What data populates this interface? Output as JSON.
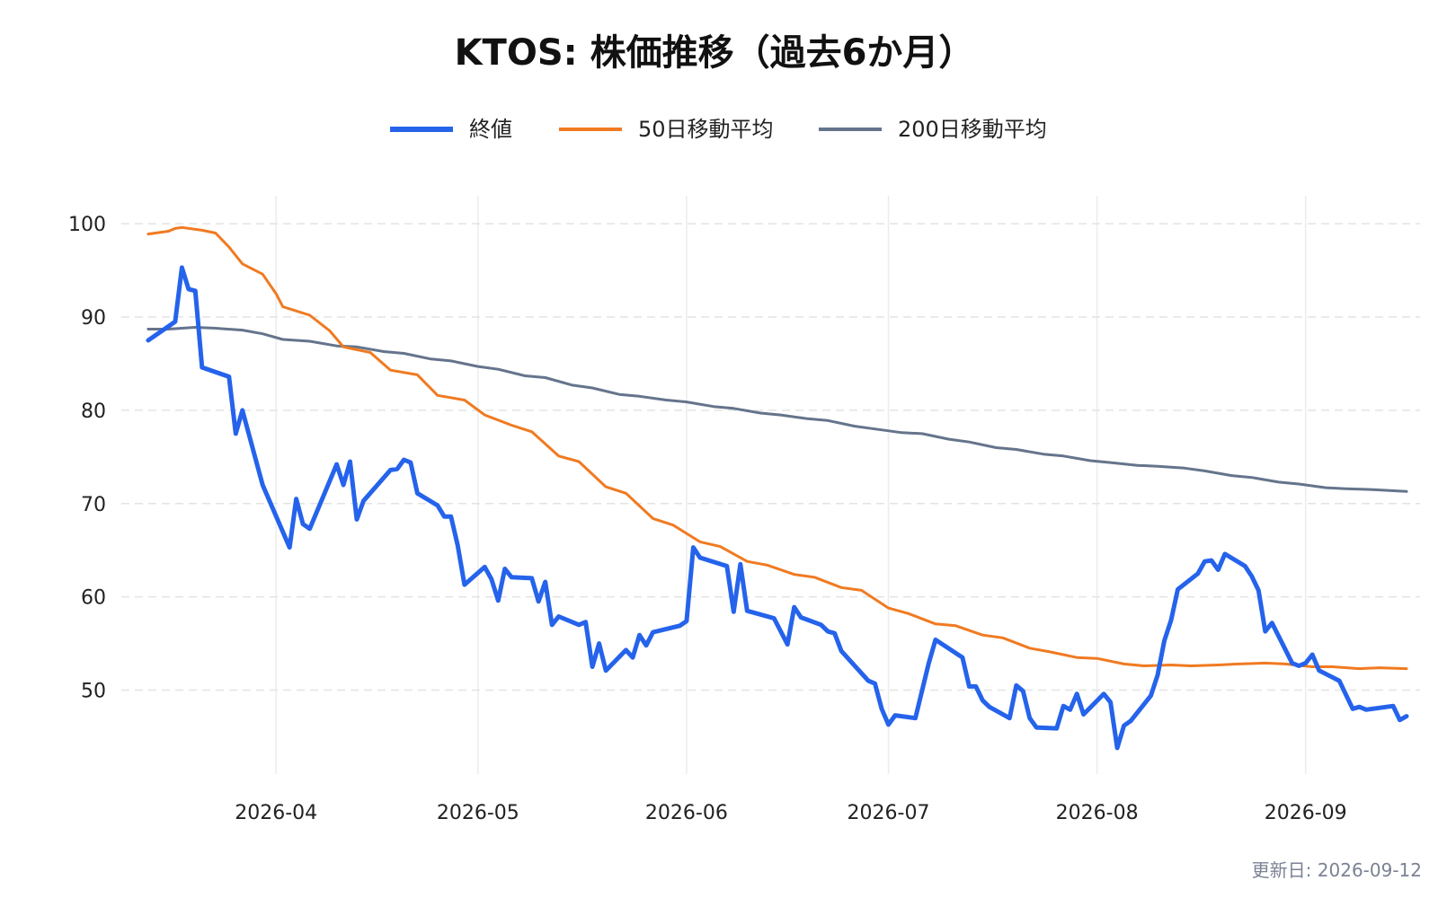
{
  "chart_data": {
    "type": "line",
    "title": "KTOS: 株価推移（過去6か月）",
    "xlabel": "",
    "ylabel": "",
    "ylim": [
      41,
      103
    ],
    "xlim": [
      "2026-03-07",
      "2026-09-18"
    ],
    "y_ticks": [
      50,
      60,
      70,
      80,
      90,
      100
    ],
    "x_ticks": [
      {
        "date": "2026-04-01",
        "label": "2026-04"
      },
      {
        "date": "2026-05-01",
        "label": "2026-05"
      },
      {
        "date": "2026-06-01",
        "label": "2026-06"
      },
      {
        "date": "2026-07-01",
        "label": "2026-07"
      },
      {
        "date": "2026-08-01",
        "label": "2026-08"
      },
      {
        "date": "2026-09-01",
        "label": "2026-09"
      }
    ],
    "grid": true,
    "legend_position": "top-center",
    "series": [
      {
        "name": "終値",
        "color": "#2563eb",
        "points": [
          [
            "2026-03-13",
            87.5
          ],
          [
            "2026-03-16",
            89.0
          ],
          [
            "2026-03-17",
            89.5
          ],
          [
            "2026-03-18",
            95.3
          ],
          [
            "2026-03-19",
            93.0
          ],
          [
            "2026-03-20",
            92.8
          ],
          [
            "2026-03-21",
            84.6
          ],
          [
            "2026-03-25",
            83.6
          ],
          [
            "2026-03-26",
            77.5
          ],
          [
            "2026-03-27",
            80.0
          ],
          [
            "2026-03-30",
            72.0
          ],
          [
            "2026-04-03",
            65.3
          ],
          [
            "2026-04-04",
            70.5
          ],
          [
            "2026-04-05",
            67.8
          ],
          [
            "2026-04-06",
            67.3
          ],
          [
            "2026-04-10",
            74.2
          ],
          [
            "2026-04-11",
            72.0
          ],
          [
            "2026-04-12",
            74.5
          ],
          [
            "2026-04-13",
            68.3
          ],
          [
            "2026-04-14",
            70.3
          ],
          [
            "2026-04-18",
            73.6
          ],
          [
            "2026-04-19",
            73.7
          ],
          [
            "2026-04-20",
            74.7
          ],
          [
            "2026-04-21",
            74.4
          ],
          [
            "2026-04-22",
            71.1
          ],
          [
            "2026-04-25",
            69.8
          ],
          [
            "2026-04-26",
            68.6
          ],
          [
            "2026-04-27",
            68.6
          ],
          [
            "2026-04-28",
            65.5
          ],
          [
            "2026-04-29",
            61.3
          ],
          [
            "2026-05-02",
            63.2
          ],
          [
            "2026-05-03",
            61.9
          ],
          [
            "2026-05-04",
            59.6
          ],
          [
            "2026-05-05",
            63.0
          ],
          [
            "2026-05-06",
            62.1
          ],
          [
            "2026-05-09",
            62.0
          ],
          [
            "2026-05-10",
            59.5
          ],
          [
            "2026-05-11",
            61.6
          ],
          [
            "2026-05-12",
            57.0
          ],
          [
            "2026-05-13",
            57.9
          ],
          [
            "2026-05-16",
            57.0
          ],
          [
            "2026-05-17",
            57.3
          ],
          [
            "2026-05-18",
            52.5
          ],
          [
            "2026-05-19",
            55.0
          ],
          [
            "2026-05-20",
            52.1
          ],
          [
            "2026-05-23",
            54.3
          ],
          [
            "2026-05-24",
            53.5
          ],
          [
            "2026-05-25",
            55.9
          ],
          [
            "2026-05-26",
            54.8
          ],
          [
            "2026-05-27",
            56.2
          ],
          [
            "2026-05-31",
            56.9
          ],
          [
            "2026-06-01",
            57.4
          ],
          [
            "2026-06-02",
            65.3
          ],
          [
            "2026-06-03",
            64.2
          ],
          [
            "2026-06-07",
            63.3
          ],
          [
            "2026-06-08",
            58.4
          ],
          [
            "2026-06-09",
            63.5
          ],
          [
            "2026-06-10",
            58.5
          ],
          [
            "2026-06-14",
            57.7
          ],
          [
            "2026-06-16",
            54.9
          ],
          [
            "2026-06-17",
            58.9
          ],
          [
            "2026-06-18",
            57.8
          ],
          [
            "2026-06-21",
            57.0
          ],
          [
            "2026-06-22",
            56.3
          ],
          [
            "2026-06-23",
            56.1
          ],
          [
            "2026-06-24",
            54.2
          ],
          [
            "2026-06-28",
            51.0
          ],
          [
            "2026-06-29",
            50.7
          ],
          [
            "2026-06-30",
            48.0
          ],
          [
            "2026-07-01",
            46.3
          ],
          [
            "2026-07-02",
            47.3
          ],
          [
            "2026-07-05",
            47.0
          ],
          [
            "2026-07-07",
            52.9
          ],
          [
            "2026-07-08",
            55.4
          ],
          [
            "2026-07-12",
            53.5
          ],
          [
            "2026-07-13",
            50.4
          ],
          [
            "2026-07-14",
            50.4
          ],
          [
            "2026-07-15",
            48.9
          ],
          [
            "2026-07-16",
            48.2
          ],
          [
            "2026-07-19",
            47.0
          ],
          [
            "2026-07-20",
            50.5
          ],
          [
            "2026-07-21",
            49.9
          ],
          [
            "2026-07-22",
            47.0
          ],
          [
            "2026-07-23",
            46.0
          ],
          [
            "2026-07-26",
            45.9
          ],
          [
            "2026-07-27",
            48.3
          ],
          [
            "2026-07-28",
            47.9
          ],
          [
            "2026-07-29",
            49.6
          ],
          [
            "2026-07-30",
            47.4
          ],
          [
            "2026-08-02",
            49.6
          ],
          [
            "2026-08-03",
            48.7
          ],
          [
            "2026-08-04",
            43.8
          ],
          [
            "2026-08-05",
            46.2
          ],
          [
            "2026-08-06",
            46.7
          ],
          [
            "2026-08-09",
            49.4
          ],
          [
            "2026-08-10",
            51.6
          ],
          [
            "2026-08-11",
            55.3
          ],
          [
            "2026-08-12",
            57.5
          ],
          [
            "2026-08-13",
            60.8
          ],
          [
            "2026-08-16",
            62.5
          ],
          [
            "2026-08-17",
            63.8
          ],
          [
            "2026-08-18",
            63.9
          ],
          [
            "2026-08-19",
            62.9
          ],
          [
            "2026-08-20",
            64.6
          ],
          [
            "2026-08-23",
            63.3
          ],
          [
            "2026-08-24",
            62.2
          ],
          [
            "2026-08-25",
            60.7
          ],
          [
            "2026-08-26",
            56.3
          ],
          [
            "2026-08-27",
            57.2
          ],
          [
            "2026-08-30",
            52.9
          ],
          [
            "2026-08-31",
            52.6
          ],
          [
            "2026-09-01",
            52.9
          ],
          [
            "2026-09-02",
            53.8
          ],
          [
            "2026-09-03",
            52.1
          ],
          [
            "2026-09-06",
            51.0
          ],
          [
            "2026-09-07",
            49.5
          ],
          [
            "2026-09-08",
            48.0
          ],
          [
            "2026-09-09",
            48.2
          ],
          [
            "2026-09-10",
            47.9
          ],
          [
            "2026-09-14",
            48.3
          ],
          [
            "2026-09-15",
            46.8
          ],
          [
            "2026-09-16",
            47.2
          ]
        ]
      },
      {
        "name": "50日移動平均",
        "color": "#f07a21",
        "points": [
          [
            "2026-03-13",
            98.9
          ],
          [
            "2026-03-16",
            99.2
          ],
          [
            "2026-03-17",
            99.5
          ],
          [
            "2026-03-18",
            99.6
          ],
          [
            "2026-03-21",
            99.3
          ],
          [
            "2026-03-23",
            99.0
          ],
          [
            "2026-03-25",
            97.5
          ],
          [
            "2026-03-27",
            95.7
          ],
          [
            "2026-03-30",
            94.6
          ],
          [
            "2026-04-01",
            92.5
          ],
          [
            "2026-04-02",
            91.1
          ],
          [
            "2026-04-06",
            90.2
          ],
          [
            "2026-04-09",
            88.5
          ],
          [
            "2026-04-11",
            86.8
          ],
          [
            "2026-04-15",
            86.2
          ],
          [
            "2026-04-18",
            84.3
          ],
          [
            "2026-04-22",
            83.8
          ],
          [
            "2026-04-25",
            81.6
          ],
          [
            "2026-04-29",
            81.1
          ],
          [
            "2026-05-02",
            79.5
          ],
          [
            "2026-05-06",
            78.4
          ],
          [
            "2026-05-09",
            77.7
          ],
          [
            "2026-05-13",
            75.1
          ],
          [
            "2026-05-16",
            74.5
          ],
          [
            "2026-05-20",
            71.8
          ],
          [
            "2026-05-23",
            71.1
          ],
          [
            "2026-05-27",
            68.4
          ],
          [
            "2026-05-30",
            67.7
          ],
          [
            "2026-06-03",
            65.9
          ],
          [
            "2026-06-06",
            65.4
          ],
          [
            "2026-06-10",
            63.8
          ],
          [
            "2026-06-13",
            63.4
          ],
          [
            "2026-06-17",
            62.4
          ],
          [
            "2026-06-20",
            62.1
          ],
          [
            "2026-06-24",
            61.0
          ],
          [
            "2026-06-27",
            60.7
          ],
          [
            "2026-07-01",
            58.8
          ],
          [
            "2026-07-04",
            58.2
          ],
          [
            "2026-07-08",
            57.1
          ],
          [
            "2026-07-11",
            56.9
          ],
          [
            "2026-07-15",
            55.9
          ],
          [
            "2026-07-18",
            55.6
          ],
          [
            "2026-07-22",
            54.5
          ],
          [
            "2026-07-25",
            54.1
          ],
          [
            "2026-07-29",
            53.5
          ],
          [
            "2026-08-01",
            53.4
          ],
          [
            "2026-08-05",
            52.8
          ],
          [
            "2026-08-08",
            52.6
          ],
          [
            "2026-08-12",
            52.7
          ],
          [
            "2026-08-15",
            52.6
          ],
          [
            "2026-08-19",
            52.7
          ],
          [
            "2026-08-22",
            52.8
          ],
          [
            "2026-08-26",
            52.9
          ],
          [
            "2026-08-29",
            52.8
          ],
          [
            "2026-09-02",
            52.5
          ],
          [
            "2026-09-05",
            52.5
          ],
          [
            "2026-09-09",
            52.3
          ],
          [
            "2026-09-12",
            52.4
          ],
          [
            "2026-09-16",
            52.3
          ]
        ]
      },
      {
        "name": "200日移動平均",
        "color": "#64748b",
        "points": [
          [
            "2026-03-13",
            88.7
          ],
          [
            "2026-03-16",
            88.7
          ],
          [
            "2026-03-20",
            88.9
          ],
          [
            "2026-03-23",
            88.8
          ],
          [
            "2026-03-27",
            88.6
          ],
          [
            "2026-03-30",
            88.2
          ],
          [
            "2026-04-02",
            87.6
          ],
          [
            "2026-04-06",
            87.4
          ],
          [
            "2026-04-10",
            86.9
          ],
          [
            "2026-04-13",
            86.8
          ],
          [
            "2026-04-17",
            86.3
          ],
          [
            "2026-04-20",
            86.1
          ],
          [
            "2026-04-24",
            85.5
          ],
          [
            "2026-04-27",
            85.3
          ],
          [
            "2026-05-01",
            84.7
          ],
          [
            "2026-05-04",
            84.4
          ],
          [
            "2026-05-08",
            83.7
          ],
          [
            "2026-05-11",
            83.5
          ],
          [
            "2026-05-15",
            82.7
          ],
          [
            "2026-05-18",
            82.4
          ],
          [
            "2026-05-22",
            81.7
          ],
          [
            "2026-05-25",
            81.5
          ],
          [
            "2026-05-29",
            81.1
          ],
          [
            "2026-06-01",
            80.9
          ],
          [
            "2026-06-05",
            80.4
          ],
          [
            "2026-06-08",
            80.2
          ],
          [
            "2026-06-12",
            79.7
          ],
          [
            "2026-06-15",
            79.5
          ],
          [
            "2026-06-19",
            79.1
          ],
          [
            "2026-06-22",
            78.9
          ],
          [
            "2026-06-26",
            78.3
          ],
          [
            "2026-06-29",
            78.0
          ],
          [
            "2026-07-03",
            77.6
          ],
          [
            "2026-07-06",
            77.5
          ],
          [
            "2026-07-10",
            76.9
          ],
          [
            "2026-07-13",
            76.6
          ],
          [
            "2026-07-17",
            76.0
          ],
          [
            "2026-07-20",
            75.8
          ],
          [
            "2026-07-24",
            75.3
          ],
          [
            "2026-07-27",
            75.1
          ],
          [
            "2026-07-31",
            74.6
          ],
          [
            "2026-08-03",
            74.4
          ],
          [
            "2026-08-07",
            74.1
          ],
          [
            "2026-08-10",
            74.0
          ],
          [
            "2026-08-14",
            73.8
          ],
          [
            "2026-08-17",
            73.5
          ],
          [
            "2026-08-21",
            73.0
          ],
          [
            "2026-08-24",
            72.8
          ],
          [
            "2026-08-28",
            72.3
          ],
          [
            "2026-08-31",
            72.1
          ],
          [
            "2026-09-04",
            71.7
          ],
          [
            "2026-09-07",
            71.6
          ],
          [
            "2026-09-11",
            71.5
          ],
          [
            "2026-09-16",
            71.3
          ]
        ]
      }
    ]
  },
  "footer": {
    "updated": "更新日: 2026-09-12"
  }
}
